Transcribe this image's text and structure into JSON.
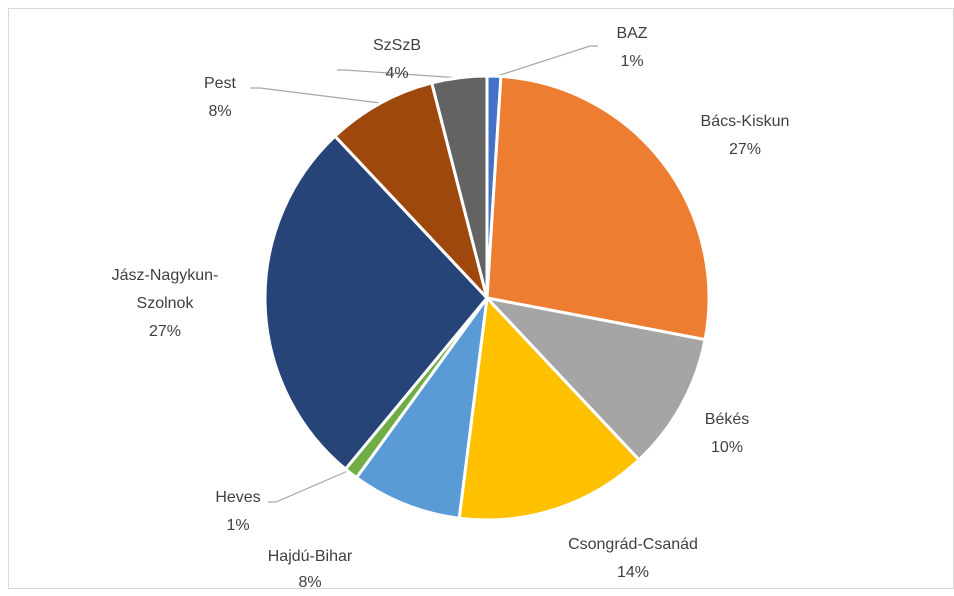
{
  "chart_data": {
    "type": "pie",
    "categories": [
      "BAZ",
      "Bács-Kiskun",
      "Békés",
      "Csongrád-Csanád",
      "Hajdú-Bihar",
      "Heves",
      "Jász-Nagykun-Szolnok",
      "Pest",
      "SzSzB"
    ],
    "values": [
      1,
      27,
      10,
      14,
      8,
      1,
      27,
      8,
      4
    ],
    "value_labels": [
      "1%",
      "27%",
      "10%",
      "14%",
      "8%",
      "1%",
      "27%",
      "8%",
      "4%"
    ],
    "colors": [
      "#4472c4",
      "#ed7d31",
      "#a5a5a5",
      "#ffc000",
      "#5b9bd5",
      "#70ad47",
      "#264478",
      "#9e480e",
      "#636363"
    ]
  }
}
